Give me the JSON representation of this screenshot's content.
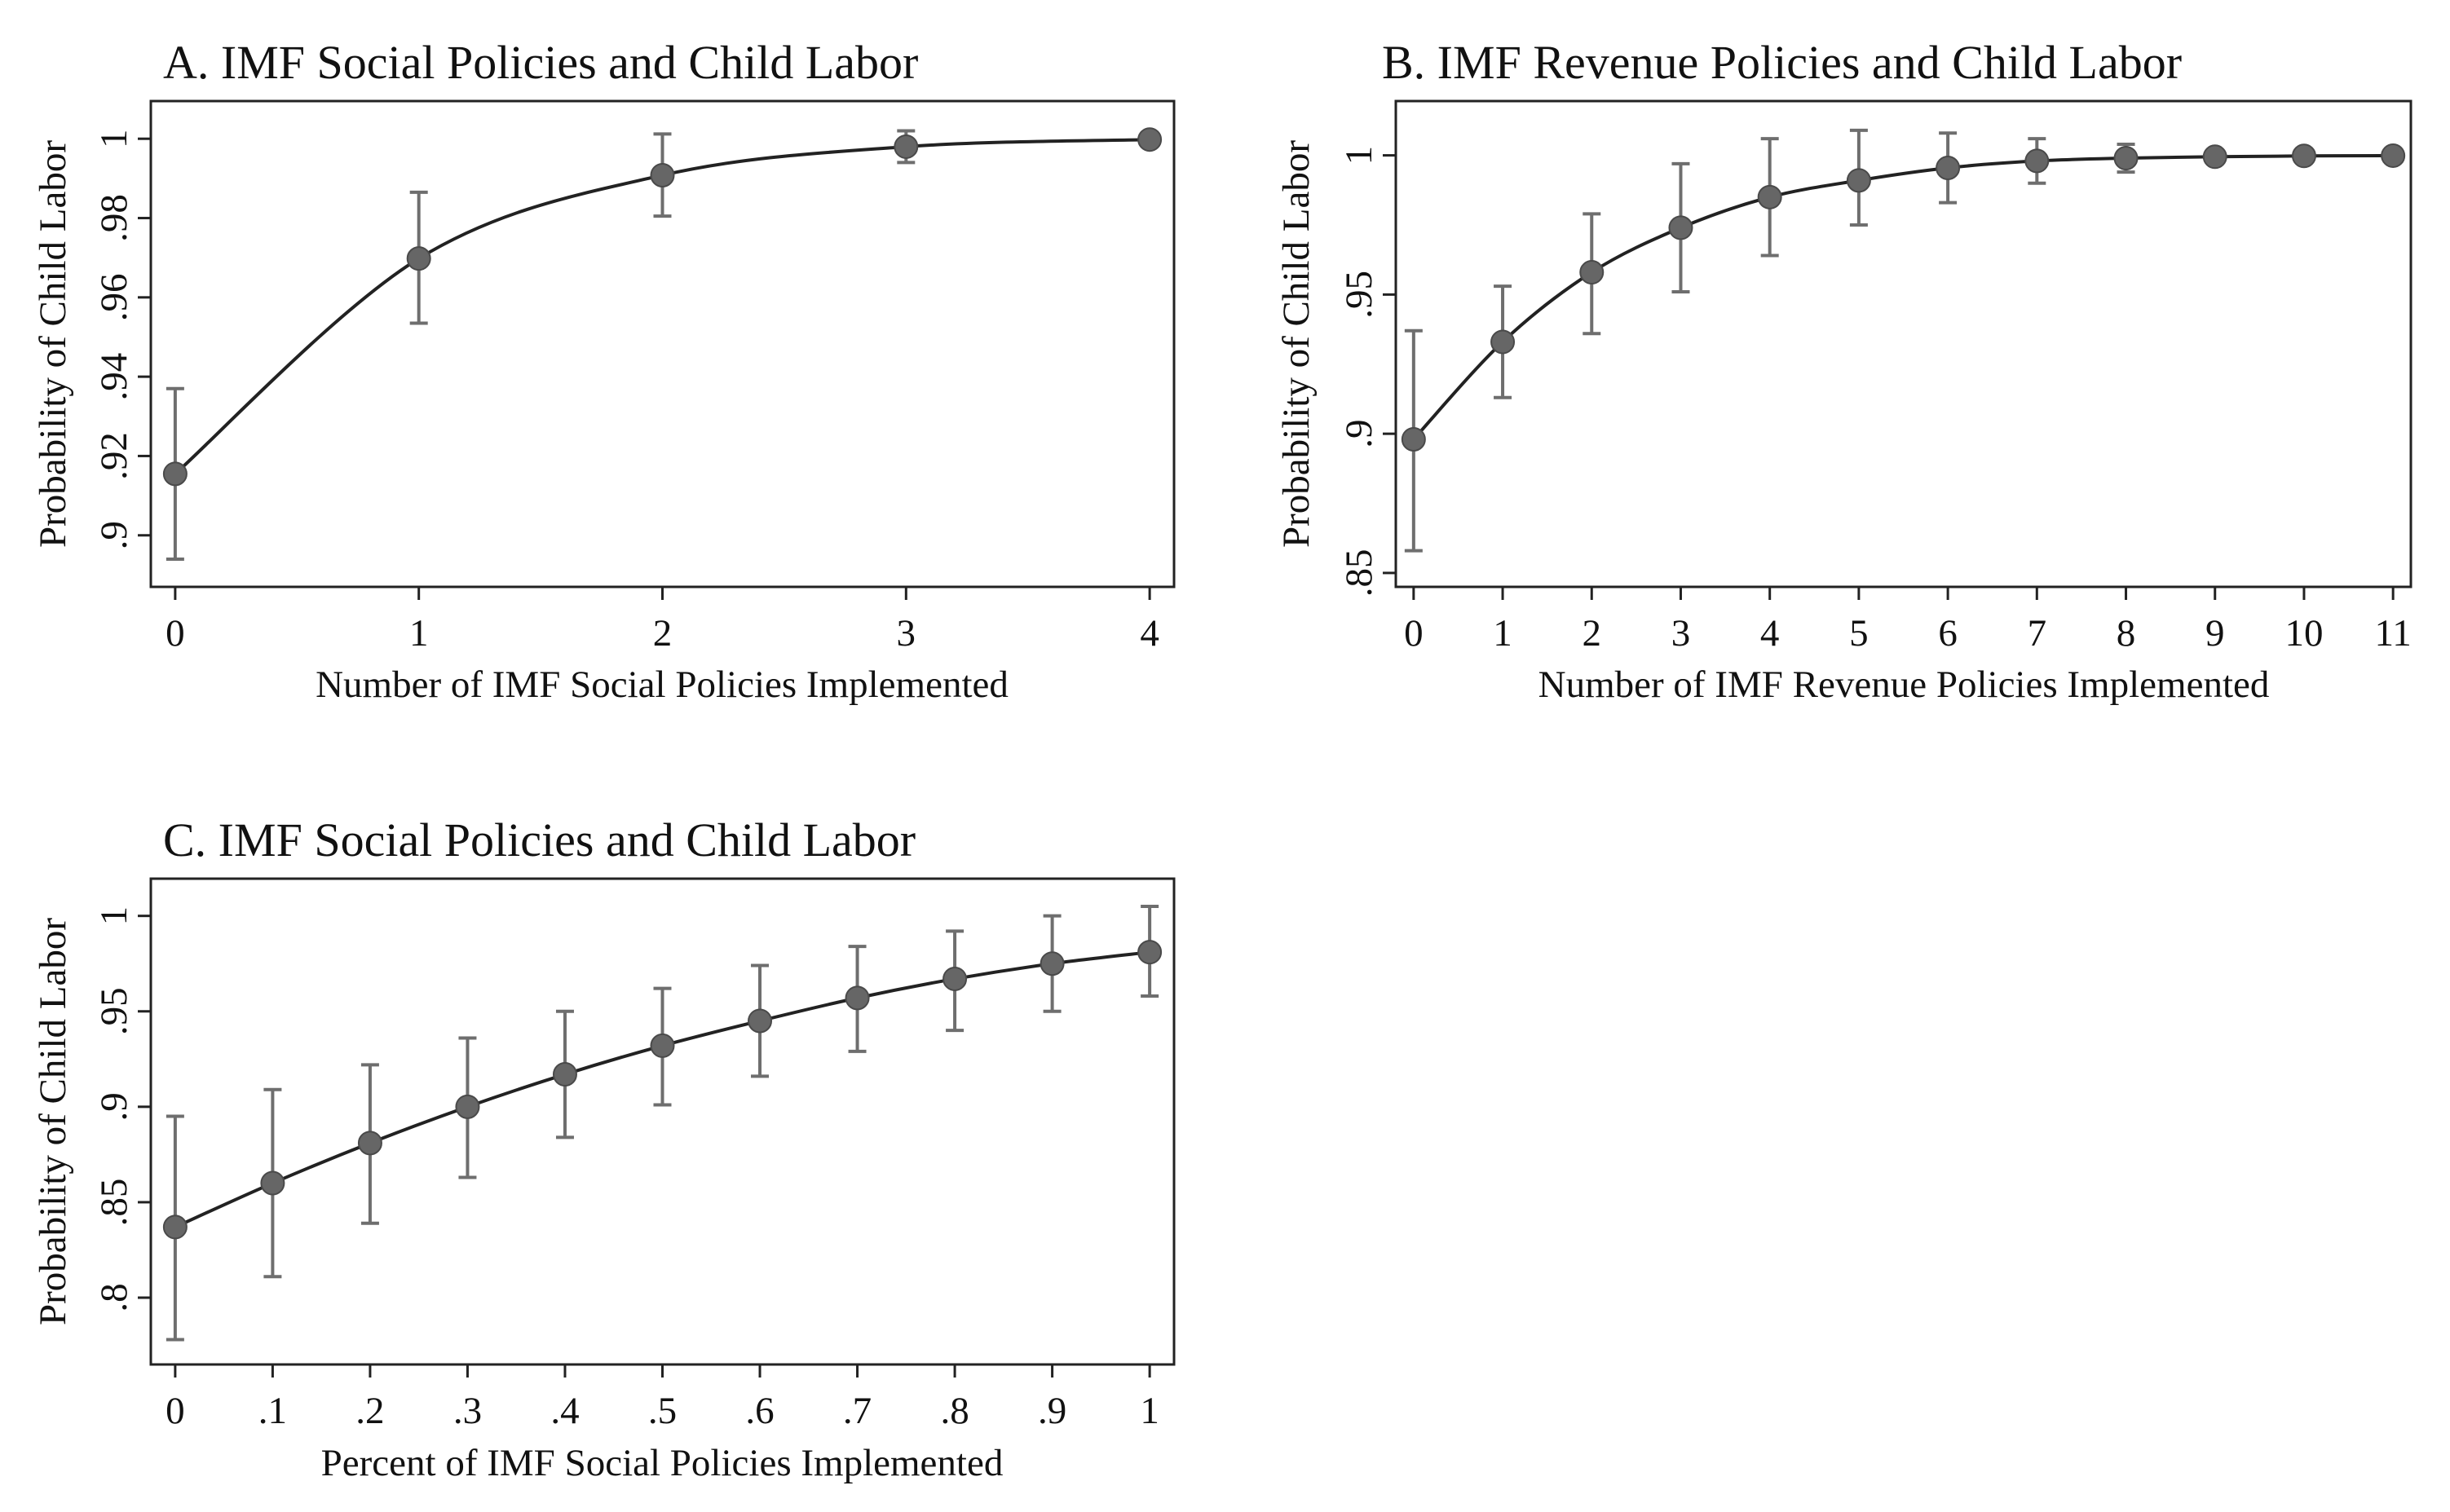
{
  "chart_data": [
    {
      "type": "line",
      "title": "A. IMF Social Policies and Child Labor",
      "xlabel": "Number of IMF Social Policies Implemented",
      "ylabel": "Probability of Child Labor",
      "x": [
        0,
        1,
        2,
        3,
        4
      ],
      "x_ticks": [
        "0",
        "1",
        "2",
        "3",
        "4"
      ],
      "y": [
        0.9155,
        0.9698,
        0.9908,
        0.998,
        0.9998
      ],
      "ci_low": [
        0.894,
        0.9535,
        0.9805,
        0.994,
        0.9993
      ],
      "ci_high": [
        0.937,
        0.9865,
        1.0012,
        1.002,
        1.0003
      ],
      "y_ticks": [
        0.9,
        0.92,
        0.94,
        0.96,
        0.98,
        1
      ],
      "y_tick_labels": [
        ".9",
        ".92",
        ".94",
        ".96",
        ".98",
        "1"
      ],
      "xlim": [
        -0.1,
        4.1
      ],
      "ylim": [
        0.887,
        1.0095
      ]
    },
    {
      "type": "line",
      "title": "B. IMF Revenue Policies and Child Labor",
      "xlabel": "Number of IMF Revenue Policies Implemented",
      "ylabel": "Probability of Child Labor",
      "x": [
        0,
        1,
        2,
        3,
        4,
        5,
        6,
        7,
        8,
        9,
        10,
        11
      ],
      "x_ticks": [
        "0",
        "1",
        "2",
        "3",
        "4",
        "5",
        "6",
        "7",
        "8",
        "9",
        "10",
        "11"
      ],
      "y": [
        0.898,
        0.933,
        0.958,
        0.974,
        0.985,
        0.991,
        0.9955,
        0.998,
        0.999,
        0.9995,
        0.9998,
        0.9999
      ],
      "ci_low": [
        0.858,
        0.913,
        0.936,
        0.951,
        0.964,
        0.975,
        0.983,
        0.99,
        0.994,
        0.9985,
        0.9993,
        0.9997
      ],
      "ci_high": [
        0.937,
        0.953,
        0.979,
        0.997,
        1.006,
        1.009,
        1.008,
        1.006,
        1.004,
        1.0008,
        1.0003,
        1.0002
      ],
      "y_ticks": [
        0.85,
        0.9,
        0.95,
        1
      ],
      "y_tick_labels": [
        ".85",
        ".9",
        ".95",
        "1"
      ],
      "xlim": [
        -0.2,
        11.2
      ],
      "ylim": [
        0.845,
        1.0195
      ]
    },
    {
      "type": "line",
      "title": "C. IMF Social Policies and Child Labor",
      "xlabel": "Percent of IMF Social Policies Implemented",
      "ylabel": "Probability of Child Labor",
      "x": [
        0,
        0.1,
        0.2,
        0.3,
        0.4,
        0.5,
        0.6,
        0.7,
        0.8,
        0.9,
        1
      ],
      "x_ticks": [
        "0",
        ".1",
        ".2",
        ".3",
        ".4",
        ".5",
        ".6",
        ".7",
        ".8",
        ".9",
        "1"
      ],
      "y": [
        0.837,
        0.86,
        0.881,
        0.9,
        0.917,
        0.932,
        0.945,
        0.957,
        0.967,
        0.975,
        0.981
      ],
      "ci_low": [
        0.778,
        0.811,
        0.839,
        0.863,
        0.884,
        0.901,
        0.916,
        0.929,
        0.94,
        0.95,
        0.958
      ],
      "ci_high": [
        0.895,
        0.909,
        0.922,
        0.936,
        0.95,
        0.962,
        0.974,
        0.984,
        0.992,
        1,
        1.005
      ],
      "y_ticks": [
        0.8,
        0.85,
        0.9,
        0.95,
        1
      ],
      "y_tick_labels": [
        ".8",
        ".85",
        ".9",
        ".95",
        "1"
      ],
      "xlim": [
        -0.025,
        1.025
      ],
      "ylim": [
        0.765,
        1.0195
      ]
    }
  ]
}
